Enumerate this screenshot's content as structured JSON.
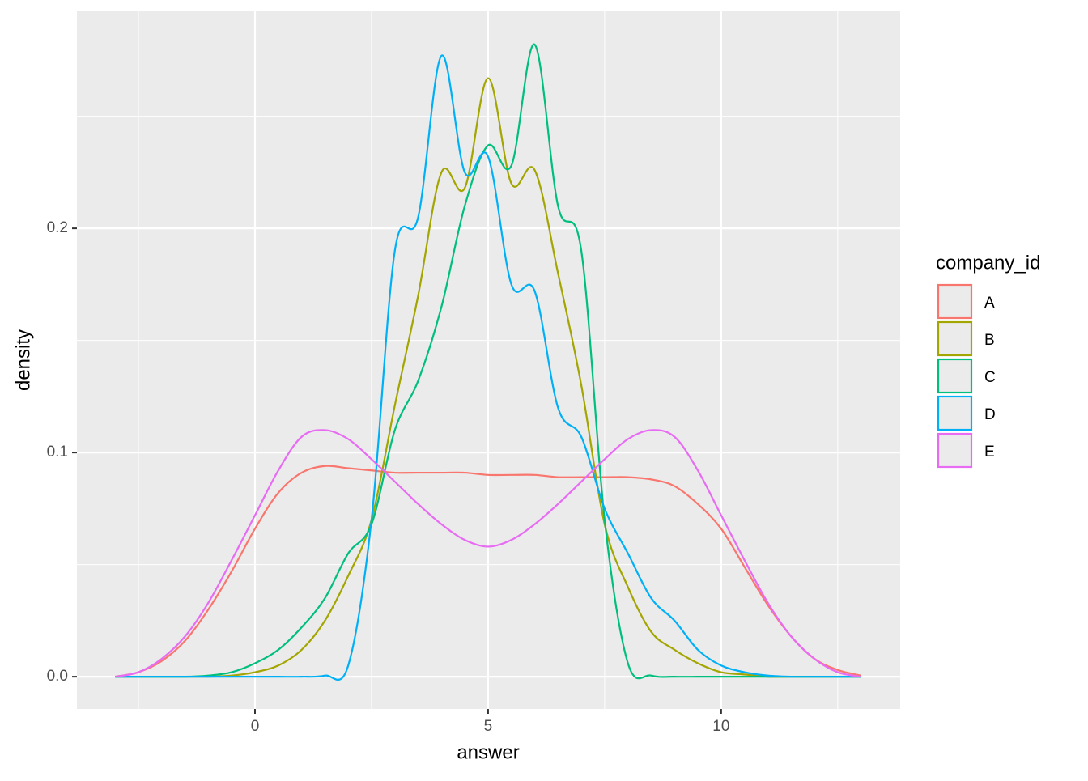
{
  "chart_data": {
    "type": "line",
    "x_label": "answer",
    "y_label": "density",
    "legend_title": "company_id",
    "legend_position": "right",
    "x": [
      -3,
      -2.5,
      -2,
      -1.5,
      -1,
      -0.5,
      0,
      0.5,
      1,
      1.5,
      2,
      2.5,
      3,
      3.5,
      4,
      4.5,
      5,
      5.5,
      6,
      6.5,
      7,
      7.5,
      8,
      8.5,
      9,
      9.5,
      10,
      10.5,
      11,
      11.5,
      12,
      12.5,
      13
    ],
    "series": [
      {
        "name": "A",
        "color": "#F8766D",
        "values": [
          0,
          0.002,
          0.007,
          0.016,
          0.03,
          0.047,
          0.066,
          0.082,
          0.091,
          0.094,
          0.093,
          0.092,
          0.091,
          0.091,
          0.091,
          0.091,
          0.09,
          0.09,
          0.09,
          0.089,
          0.089,
          0.089,
          0.089,
          0.088,
          0.085,
          0.077,
          0.066,
          0.049,
          0.032,
          0.018,
          0.008,
          0.003,
          0.0005
        ]
      },
      {
        "name": "B",
        "color": "#A3A500",
        "values": [
          0,
          0,
          0,
          0,
          0,
          0.0005,
          0.002,
          0.005,
          0.012,
          0.025,
          0.045,
          0.07,
          0.121,
          0.17,
          0.225,
          0.218,
          0.267,
          0.22,
          0.226,
          0.18,
          0.13,
          0.068,
          0.04,
          0.02,
          0.012,
          0.006,
          0.002,
          0.001,
          0,
          0,
          0,
          0,
          0
        ]
      },
      {
        "name": "C",
        "color": "#00BF7D",
        "values": [
          0,
          0,
          0,
          0,
          0.0005,
          0.002,
          0.006,
          0.012,
          0.022,
          0.035,
          0.055,
          0.068,
          0.11,
          0.132,
          0.165,
          0.21,
          0.237,
          0.228,
          0.282,
          0.21,
          0.19,
          0.07,
          0.006,
          0.0005,
          0,
          0,
          0,
          0,
          0,
          0,
          0,
          0,
          0
        ]
      },
      {
        "name": "D",
        "color": "#00B0F6",
        "values": [
          0,
          0,
          0,
          0,
          0,
          0,
          0,
          0,
          0,
          0.0005,
          0.005,
          0.07,
          0.19,
          0.205,
          0.277,
          0.225,
          0.232,
          0.175,
          0.172,
          0.12,
          0.107,
          0.075,
          0.055,
          0.035,
          0.025,
          0.012,
          0.005,
          0.002,
          0.0005,
          0,
          0,
          0,
          0
        ]
      },
      {
        "name": "E",
        "color": "#E76BF3",
        "values": [
          0,
          0.002,
          0.008,
          0.018,
          0.033,
          0.052,
          0.072,
          0.092,
          0.107,
          0.11,
          0.106,
          0.097,
          0.087,
          0.077,
          0.068,
          0.061,
          0.058,
          0.061,
          0.068,
          0.077,
          0.087,
          0.097,
          0.106,
          0.11,
          0.107,
          0.092,
          0.072,
          0.052,
          0.033,
          0.018,
          0.008,
          0.002,
          0
        ]
      }
    ],
    "xlim": [
      -3.82,
      13.84
    ],
    "ylim": [
      -0.0144,
      0.2968
    ],
    "xticks": [
      0,
      5,
      10
    ],
    "xminor": [
      -2.5,
      2.5,
      7.5,
      12.5
    ],
    "yticks": [
      {
        "value": 0,
        "label": "0.0"
      },
      0.1,
      0.2
    ],
    "yminor": [
      0.05,
      0.15,
      0.25
    ],
    "grid": true
  }
}
